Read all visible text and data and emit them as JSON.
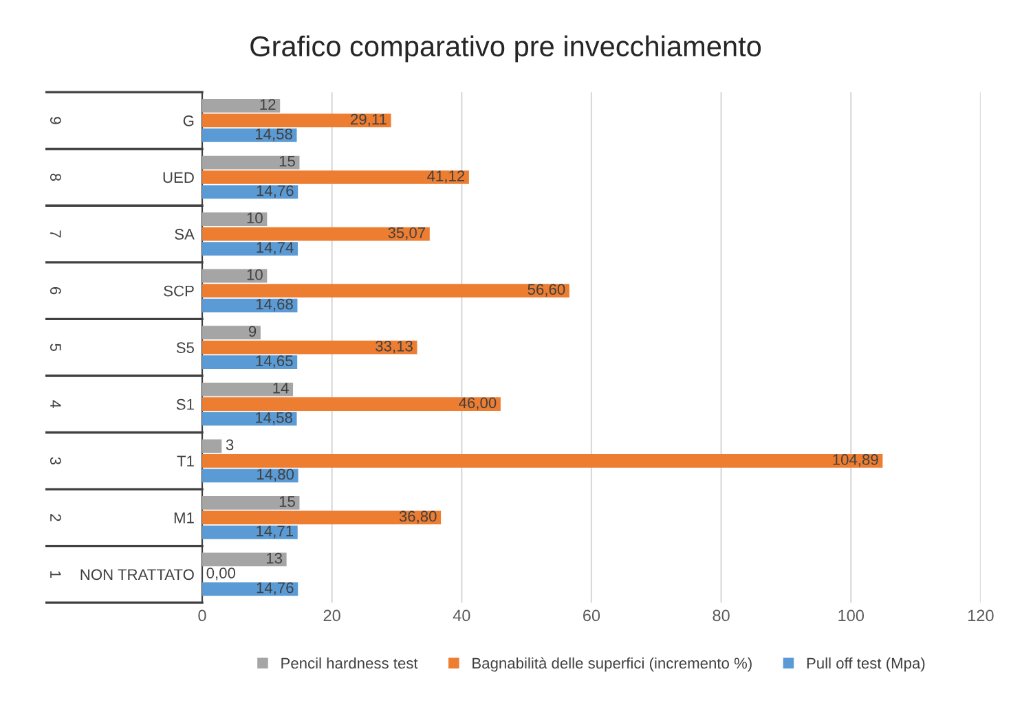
{
  "chart_data": {
    "type": "bar",
    "orientation": "horizontal",
    "title": "Grafico comparativo pre invecchiamento",
    "categories": [
      "G",
      "UED",
      "SA",
      "SCP",
      "S5",
      "S1",
      "T1",
      "M1",
      "NON TRATTATO"
    ],
    "series": [
      {
        "name": "Pencil hardness test",
        "color": "#a5a5a5",
        "values": [
          12,
          15,
          10,
          10,
          9,
          14,
          3,
          15,
          13
        ],
        "value_labels": [
          "12",
          "15",
          "10",
          "10",
          "9",
          "14",
          "3",
          "15",
          "13"
        ]
      },
      {
        "name": "Bagnabilità delle superfici (incremento %)",
        "color": "#ed7d31",
        "values": [
          29.11,
          41.12,
          35.07,
          56.6,
          33.13,
          46.0,
          104.89,
          36.8,
          0.0
        ],
        "value_labels": [
          "29,11",
          "41,12",
          "35,07",
          "56,60",
          "33,13",
          "46,00",
          "104,89",
          "36,80",
          "0,00"
        ]
      },
      {
        "name": "Pull off test (Mpa)",
        "color": "#5b9bd5",
        "values": [
          14.58,
          14.76,
          14.74,
          14.68,
          14.65,
          14.58,
          14.8,
          14.71,
          14.76
        ],
        "value_labels": [
          "14,58",
          "14,76",
          "14,74",
          "14,68",
          "14,65",
          "14,58",
          "14,80",
          "14,71",
          "14,76"
        ]
      }
    ],
    "annotations": [
      "9",
      "8",
      "7",
      "6",
      "5",
      "4",
      "3",
      "2",
      "1"
    ],
    "xlim": [
      0,
      120
    ],
    "xticks": [
      0,
      20,
      40,
      60,
      80,
      100,
      120
    ],
    "grid": "x",
    "legend": "bottom"
  }
}
